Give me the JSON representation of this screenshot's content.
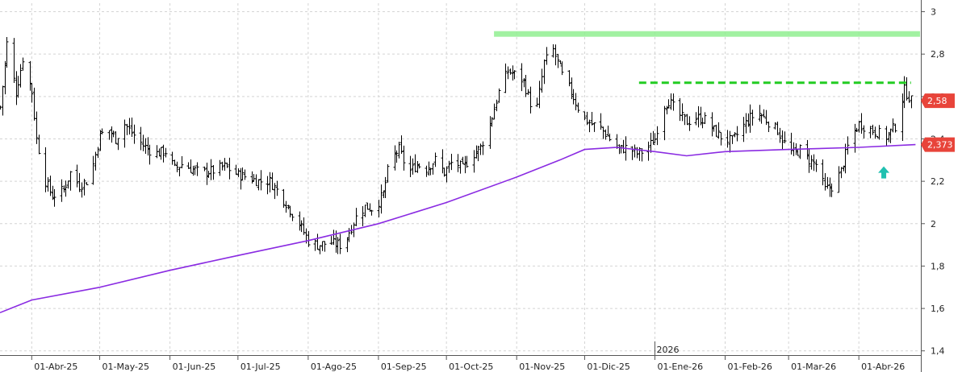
{
  "chart_data": {
    "type": "ohlc",
    "title": "",
    "xlabel": "",
    "ylabel": "",
    "ylim": [
      1.38,
      3.04
    ],
    "y_ticks": [
      "3",
      "2,8",
      "2,6",
      "2,4",
      "2,2",
      "2",
      "1,8",
      "1,6",
      "1,4"
    ],
    "x_ticks": [
      {
        "label": "01-Abr-25",
        "date": "2025-04-01"
      },
      {
        "label": "01-May-25",
        "date": "2025-05-01"
      },
      {
        "label": "01-Jun-25",
        "date": "2025-06-01"
      },
      {
        "label": "01-Jul-25",
        "date": "2025-07-01"
      },
      {
        "label": "01-Ago-25",
        "date": "2025-08-01"
      },
      {
        "label": "01-Sep-25",
        "date": "2025-09-01"
      },
      {
        "label": "01-Oct-25",
        "date": "2025-10-01"
      },
      {
        "label": "01-Nov-25",
        "date": "2025-11-01"
      },
      {
        "label": "01-Dic-25",
        "date": "2025-12-01"
      },
      {
        "label": "01-Ene-26",
        "date": "2026-01-01"
      },
      {
        "label": "01-Feb-26",
        "date": "2026-02-01"
      },
      {
        "label": "01-Mar-26",
        "date": "2026-03-01"
      },
      {
        "label": "01-Abr-26",
        "date": "2026-04-01"
      }
    ],
    "year_marker": {
      "label": "2026",
      "date": "2026-01-01"
    },
    "grid": true,
    "price_path": [
      [
        "2025-03-18",
        2.55
      ],
      [
        "2025-03-21",
        2.85
      ],
      [
        "2025-03-25",
        2.62
      ],
      [
        "2025-03-28",
        2.78
      ],
      [
        "2025-04-01",
        2.62
      ],
      [
        "2025-04-03",
        2.4
      ],
      [
        "2025-04-07",
        2.2
      ],
      [
        "2025-04-10",
        2.13
      ],
      [
        "2025-04-15",
        2.16
      ],
      [
        "2025-04-18",
        2.24
      ],
      [
        "2025-04-22",
        2.18
      ],
      [
        "2025-04-25",
        2.2
      ],
      [
        "2025-04-28",
        2.28
      ],
      [
        "2025-05-01",
        2.42
      ],
      [
        "2025-05-05",
        2.44
      ],
      [
        "2025-05-08",
        2.4
      ],
      [
        "2025-05-12",
        2.47
      ],
      [
        "2025-05-15",
        2.43
      ],
      [
        "2025-05-20",
        2.37
      ],
      [
        "2025-05-25",
        2.33
      ],
      [
        "2025-05-30",
        2.34
      ],
      [
        "2025-06-03",
        2.26
      ],
      [
        "2025-06-06",
        2.28
      ],
      [
        "2025-06-10",
        2.26
      ],
      [
        "2025-06-15",
        2.24
      ],
      [
        "2025-06-20",
        2.25
      ],
      [
        "2025-06-25",
        2.27
      ],
      [
        "2025-07-01",
        2.23
      ],
      [
        "2025-07-05",
        2.22
      ],
      [
        "2025-07-10",
        2.2
      ],
      [
        "2025-07-15",
        2.2
      ],
      [
        "2025-07-20",
        2.13
      ],
      [
        "2025-07-25",
        2.05
      ],
      [
        "2025-07-28",
        2.0
      ],
      [
        "2025-08-01",
        1.92
      ],
      [
        "2025-08-05",
        1.9
      ],
      [
        "2025-08-10",
        1.91
      ],
      [
        "2025-08-15",
        1.9
      ],
      [
        "2025-08-18",
        1.94
      ],
      [
        "2025-08-22",
        2.03
      ],
      [
        "2025-08-26",
        2.08
      ],
      [
        "2025-08-30",
        2.07
      ],
      [
        "2025-09-03",
        2.14
      ],
      [
        "2025-09-06",
        2.3
      ],
      [
        "2025-09-10",
        2.35
      ],
      [
        "2025-09-14",
        2.24
      ],
      [
        "2025-09-18",
        2.28
      ],
      [
        "2025-09-22",
        2.26
      ],
      [
        "2025-09-26",
        2.3
      ],
      [
        "2025-09-30",
        2.24
      ],
      [
        "2025-10-04",
        2.3
      ],
      [
        "2025-10-08",
        2.26
      ],
      [
        "2025-10-12",
        2.32
      ],
      [
        "2025-10-16",
        2.36
      ],
      [
        "2025-10-20",
        2.47
      ],
      [
        "2025-10-24",
        2.62
      ],
      [
        "2025-10-28",
        2.72
      ],
      [
        "2025-11-01",
        2.7
      ],
      [
        "2025-11-04",
        2.67
      ],
      [
        "2025-11-07",
        2.57
      ],
      [
        "2025-11-10",
        2.55
      ],
      [
        "2025-11-13",
        2.76
      ],
      [
        "2025-11-17",
        2.82
      ],
      [
        "2025-11-21",
        2.7
      ],
      [
        "2025-11-25",
        2.62
      ],
      [
        "2025-11-30",
        2.5
      ],
      [
        "2025-12-04",
        2.47
      ],
      [
        "2025-12-08",
        2.45
      ],
      [
        "2025-12-12",
        2.4
      ],
      [
        "2025-12-16",
        2.35
      ],
      [
        "2025-12-20",
        2.36
      ],
      [
        "2025-12-24",
        2.33
      ],
      [
        "2025-12-28",
        2.35
      ],
      [
        "2026-01-01",
        2.4
      ],
      [
        "2026-01-04",
        2.55
      ],
      [
        "2026-01-07",
        2.58
      ],
      [
        "2026-01-11",
        2.52
      ],
      [
        "2026-01-15",
        2.48
      ],
      [
        "2026-01-19",
        2.5
      ],
      [
        "2026-01-23",
        2.49
      ],
      [
        "2026-01-27",
        2.44
      ],
      [
        "2026-01-31",
        2.4
      ],
      [
        "2026-02-04",
        2.39
      ],
      [
        "2026-02-08",
        2.45
      ],
      [
        "2026-02-12",
        2.5
      ],
      [
        "2026-02-16",
        2.52
      ],
      [
        "2026-02-20",
        2.48
      ],
      [
        "2026-02-24",
        2.44
      ],
      [
        "2026-02-28",
        2.36
      ],
      [
        "2026-03-03",
        2.33
      ],
      [
        "2026-03-06",
        2.35
      ],
      [
        "2026-03-10",
        2.3
      ],
      [
        "2026-03-13",
        2.28
      ],
      [
        "2026-03-17",
        2.16
      ],
      [
        "2026-03-21",
        2.18
      ],
      [
        "2026-03-24",
        2.25
      ],
      [
        "2026-03-28",
        2.4
      ],
      [
        "2026-04-01",
        2.47
      ],
      [
        "2026-04-05",
        2.45
      ],
      [
        "2026-04-09",
        2.43
      ],
      [
        "2026-04-13",
        2.41
      ],
      [
        "2026-04-17",
        2.46
      ],
      [
        "2026-04-21",
        2.63
      ],
      [
        "2026-04-24",
        2.58
      ]
    ],
    "series": [
      {
        "type": "line",
        "color": "#8a2be2",
        "points": [
          [
            "2025-03-18",
            1.58
          ],
          [
            "2025-04-01",
            1.64
          ],
          [
            "2025-05-01",
            1.7
          ],
          [
            "2025-06-01",
            1.78
          ],
          [
            "2025-07-01",
            1.85
          ],
          [
            "2025-08-01",
            1.92
          ],
          [
            "2025-09-01",
            2.0
          ],
          [
            "2025-10-01",
            2.1
          ],
          [
            "2025-11-01",
            2.22
          ],
          [
            "2025-11-20",
            2.3
          ],
          [
            "2025-12-01",
            2.35
          ],
          [
            "2025-12-15",
            2.36
          ],
          [
            "2026-01-01",
            2.34
          ],
          [
            "2026-01-15",
            2.32
          ],
          [
            "2026-02-01",
            2.34
          ],
          [
            "2026-03-01",
            2.35
          ],
          [
            "2026-04-01",
            2.36
          ],
          [
            "2026-04-26",
            2.373
          ]
        ]
      }
    ],
    "annotations": {
      "resistance_band": {
        "from": "2025-10-22",
        "to": "2026-04-28",
        "value": 2.895,
        "color": "#90ee90"
      },
      "dashed_resistance": {
        "from": "2025-12-25",
        "to": "2026-04-24",
        "value": 2.665,
        "color": "#22cc22"
      },
      "up_arrow": {
        "date": "2026-04-12",
        "value": 2.24,
        "color": "#20c0b0"
      }
    },
    "last_price": {
      "label": "2,58",
      "value": 2.58,
      "color": "#e8443a"
    },
    "ma_value": {
      "label": "2,373",
      "value": 2.373,
      "color": "#e8443a"
    }
  }
}
